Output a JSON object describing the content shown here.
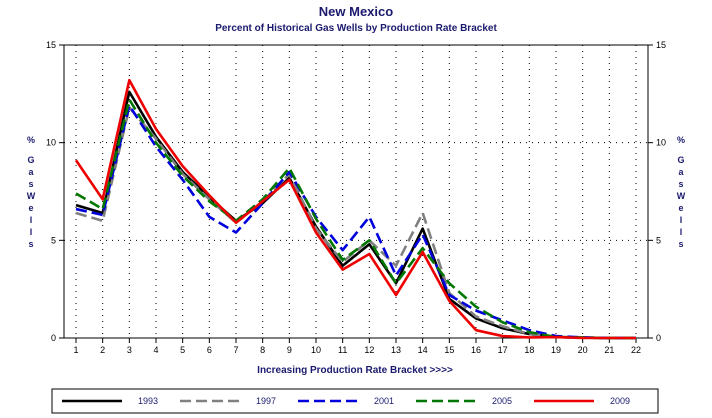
{
  "chart_data": {
    "type": "line",
    "title": "New Mexico",
    "subtitle": "Percent of Historical Gas Wells by Production Rate Bracket",
    "xlabel": "Increasing Production Rate Bracket >>>>",
    "ylabel": "% Gas Wells",
    "x": [
      1,
      2,
      3,
      4,
      5,
      6,
      7,
      8,
      9,
      10,
      11,
      12,
      13,
      14,
      15,
      16,
      17,
      18,
      19,
      20,
      21,
      22
    ],
    "ylim": [
      0,
      15
    ],
    "yticks": [
      0,
      5,
      10,
      15
    ],
    "grid": true,
    "legend_position": "bottom",
    "series": [
      {
        "name": "1993",
        "color": "#000000",
        "dash": "solid",
        "values": [
          6.8,
          6.4,
          12.6,
          10.3,
          8.5,
          7.2,
          6.0,
          6.9,
          8.2,
          5.7,
          3.7,
          4.8,
          2.8,
          5.6,
          2.0,
          1.0,
          0.5,
          0.2,
          0.05,
          0.02,
          0.0,
          0.0
        ]
      },
      {
        "name": "1997",
        "color": "#808080",
        "dash": "long-dash",
        "values": [
          6.4,
          6.0,
          11.8,
          10.2,
          8.4,
          7.1,
          5.9,
          7.0,
          8.4,
          5.6,
          3.9,
          5.0,
          3.7,
          6.4,
          2.3,
          1.1,
          0.6,
          0.2,
          0.05,
          0.02,
          0.0,
          0.0
        ]
      },
      {
        "name": "2001",
        "color": "#0000dd",
        "dash": "long-dash",
        "values": [
          6.6,
          6.3,
          11.9,
          9.8,
          8.1,
          6.2,
          5.4,
          6.9,
          8.5,
          6.2,
          4.5,
          6.2,
          3.2,
          5.3,
          2.2,
          1.4,
          0.9,
          0.4,
          0.1,
          0.03,
          0.0,
          0.0
        ]
      },
      {
        "name": "2005",
        "color": "#007700",
        "dash": "long-dash",
        "values": [
          7.4,
          6.6,
          12.2,
          10.0,
          8.3,
          7.0,
          6.0,
          7.1,
          8.7,
          6.1,
          4.0,
          5.0,
          2.8,
          4.6,
          2.8,
          1.6,
          0.8,
          0.3,
          0.05,
          0.02,
          0.0,
          0.0
        ]
      },
      {
        "name": "2009",
        "color": "#ee0000",
        "dash": "solid",
        "values": [
          9.1,
          7.1,
          13.2,
          10.7,
          8.8,
          7.3,
          5.9,
          7.0,
          8.1,
          5.4,
          3.5,
          4.3,
          2.2,
          4.4,
          1.9,
          0.4,
          0.1,
          0.03,
          0.05,
          0.0,
          0.0,
          0.0
        ]
      }
    ]
  }
}
